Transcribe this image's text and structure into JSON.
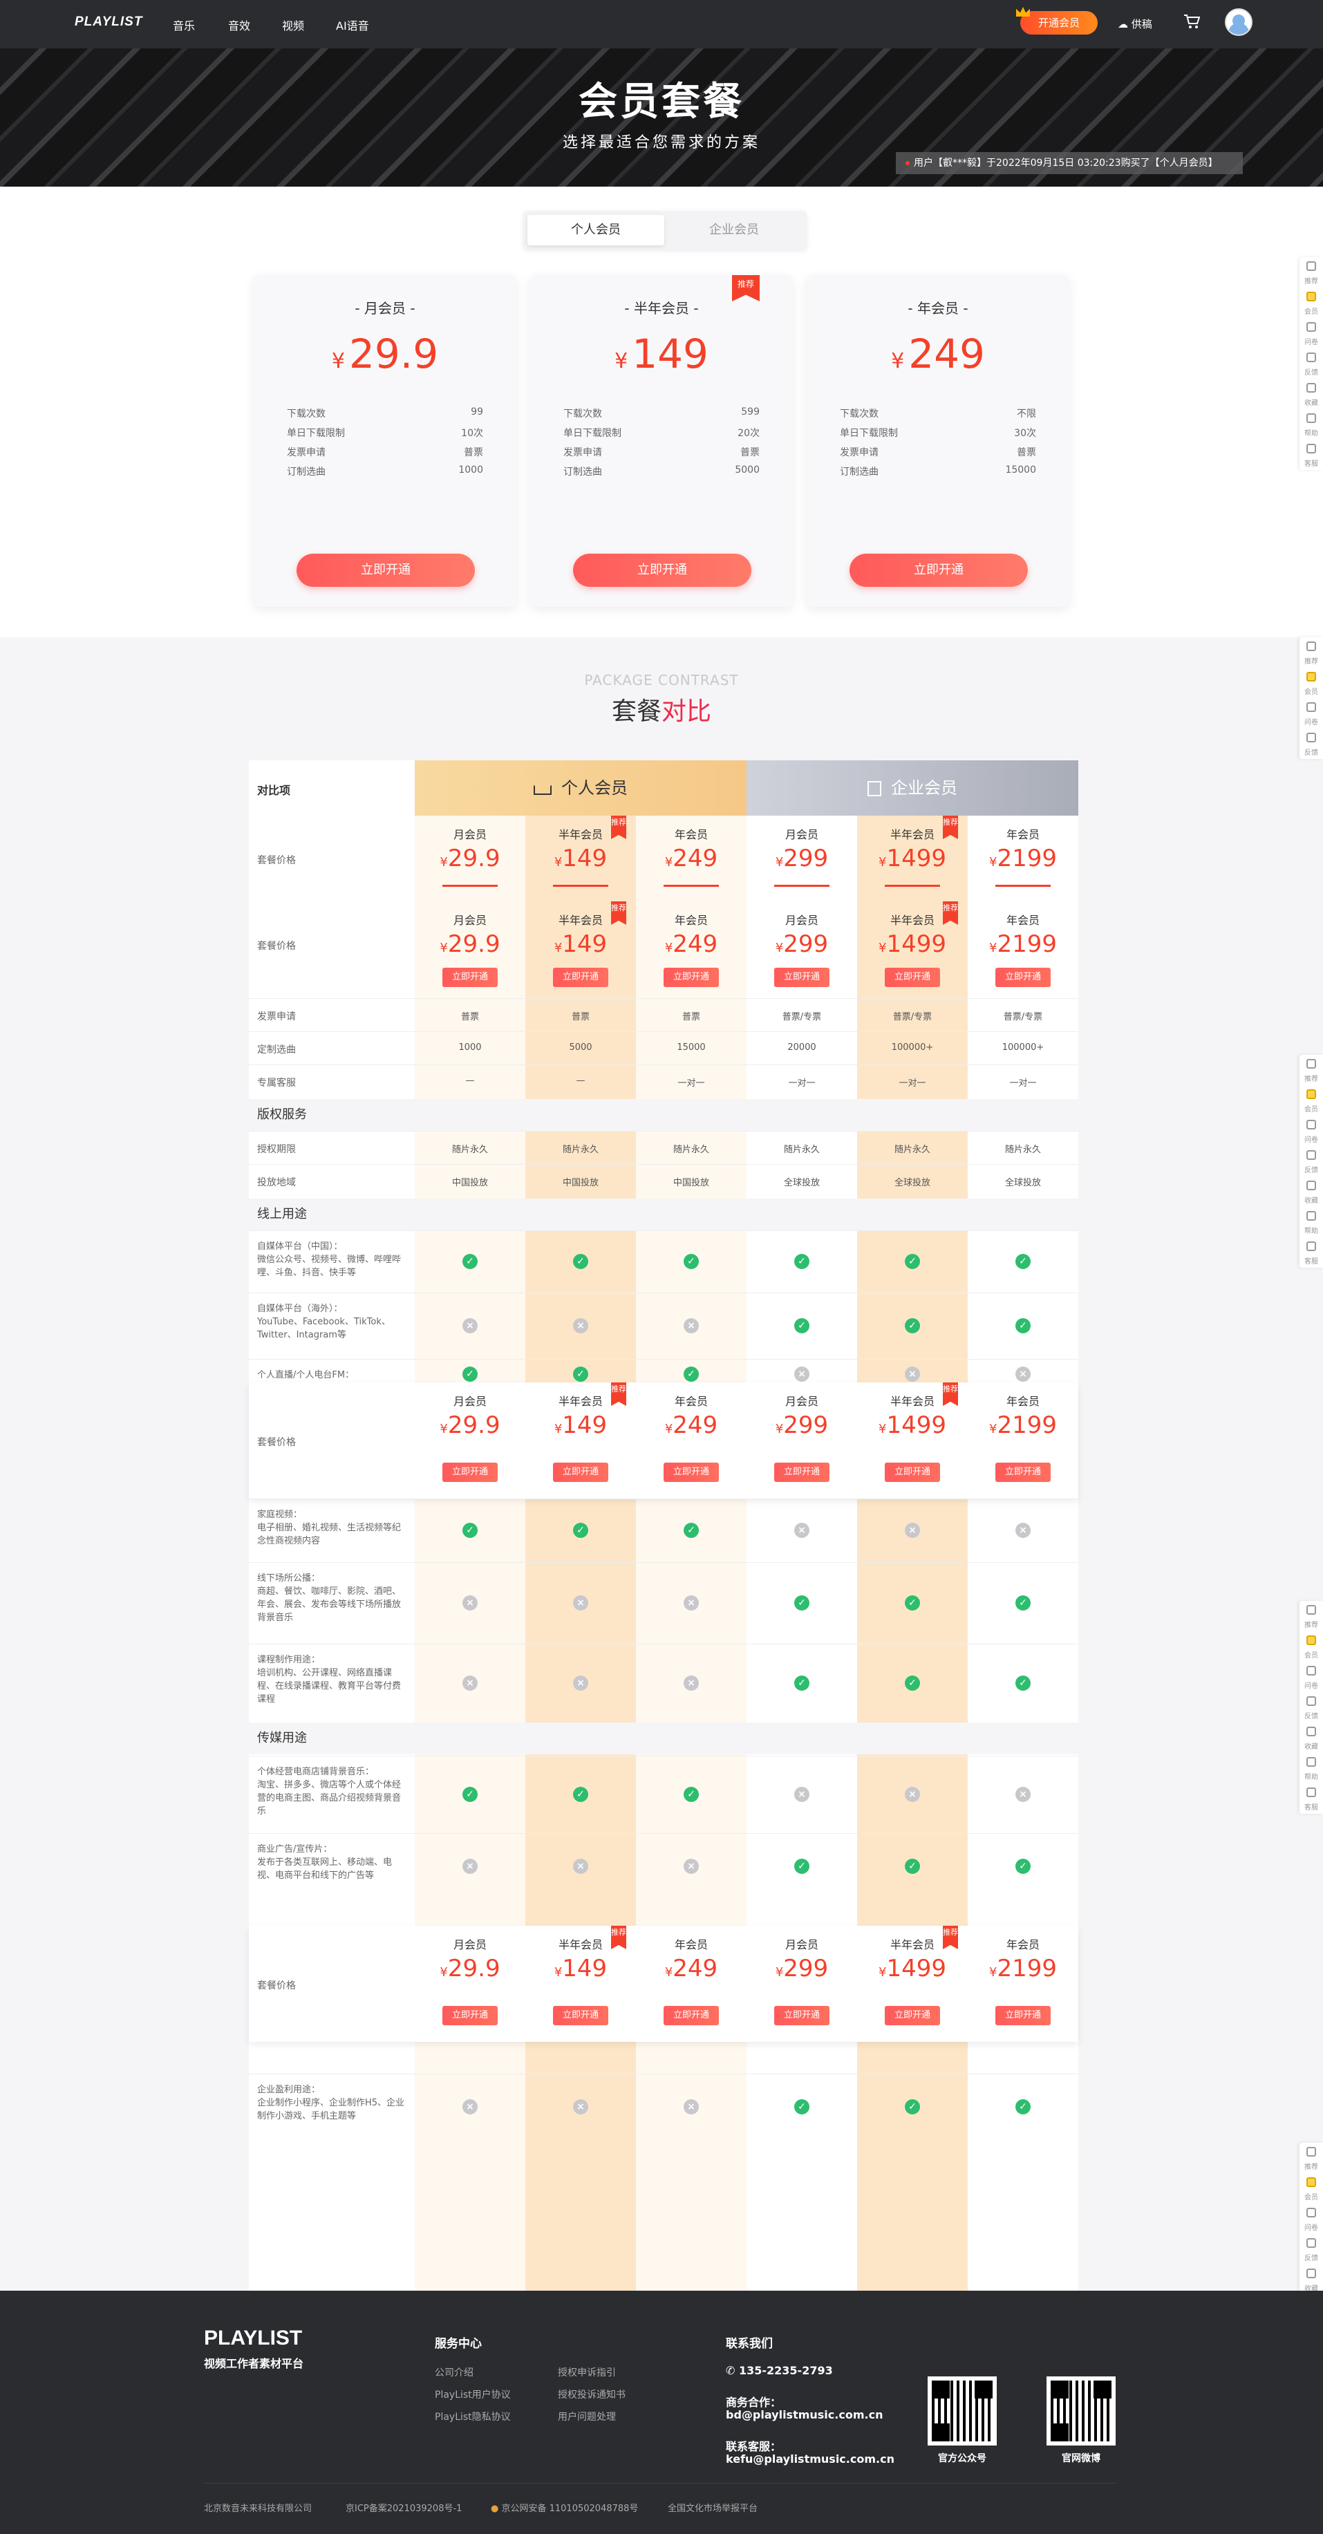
{
  "header": {
    "logo": "PLAYLIST",
    "nav": [
      "音乐",
      "音效",
      "视频",
      "AI语音"
    ],
    "vip_button": "开通会员",
    "upload": "供稿"
  },
  "banner": {
    "title": "会员套餐",
    "subtitle": "选择最适合您需求的方案",
    "notice": "用户【叡***毅】于2022年09月15日 03:20:23购买了【个人月会员】"
  },
  "tabs": [
    "个人会员",
    "企业会员"
  ],
  "plans": [
    {
      "name": "- 月会员 -",
      "price": "29.9",
      "recommend": "",
      "rows": [
        [
          "下载次数",
          "99"
        ],
        [
          "单日下载限制",
          "10次"
        ],
        [
          "发票申请",
          "普票"
        ],
        [
          "订制选曲",
          "1000"
        ]
      ],
      "button": "立即开通"
    },
    {
      "name": "- 半年会员 -",
      "price": "149",
      "recommend": "推荐",
      "rows": [
        [
          "下载次数",
          "599"
        ],
        [
          "单日下载限制",
          "20次"
        ],
        [
          "发票申请",
          "普票"
        ],
        [
          "订制选曲",
          "5000"
        ]
      ],
      "button": "立即开通"
    },
    {
      "name": "- 年会员 -",
      "price": "249",
      "recommend": "",
      "rows": [
        [
          "下载次数",
          "不限"
        ],
        [
          "单日下载限制",
          "30次"
        ],
        [
          "发票申请",
          "普票"
        ],
        [
          "订制选曲",
          "15000"
        ]
      ],
      "button": "立即开通"
    }
  ],
  "compare": {
    "title_en": "PACKAGE CONTRAST",
    "title_a": "套餐",
    "title_b": "对比",
    "label_header": "对比项",
    "personal": "个人会员",
    "enterprise": "企业会员",
    "price_label": "套餐价格",
    "recommend_tag": "推荐",
    "yen": "¥",
    "buy": "立即开通",
    "columns": [
      {
        "name": "月会员",
        "price": "29.9"
      },
      {
        "name": "半年会员",
        "price": "149",
        "recommend": true
      },
      {
        "name": "年会员",
        "price": "249"
      },
      {
        "name": "月会员",
        "price": "299"
      },
      {
        "name": "半年会员",
        "price": "1499",
        "recommend": true
      },
      {
        "name": "年会员",
        "price": "2199"
      }
    ],
    "basic_rows": [
      {
        "label": "发票申请",
        "values": [
          "普票",
          "普票",
          "普票",
          "普票/专票",
          "普票/专票",
          "普票/专票"
        ]
      },
      {
        "label": "定制选曲",
        "values": [
          "1000",
          "5000",
          "15000",
          "20000",
          "100000+",
          "100000+"
        ]
      },
      {
        "label": "专属客服",
        "values": [
          "—",
          "—",
          "一对一",
          "一对一",
          "一对一",
          "一对一"
        ]
      }
    ],
    "copyright_title": "版权服务",
    "copyright_rows": [
      {
        "label": "授权期限",
        "values": [
          "随片永久",
          "随片永久",
          "随片永久",
          "随片永久",
          "随片永久",
          "随片永久"
        ]
      },
      {
        "label": "投放地域",
        "values": [
          "中国投放",
          "中国投放",
          "中国投放",
          "全球投放",
          "全球投放",
          "全球投放"
        ]
      }
    ],
    "online_title": "线上用途",
    "online_rows": [
      {
        "label": "自媒体平台（中国）：\n微信公众号、视频号、微博、哔哩哔哩、斗鱼、抖音、快手等",
        "marks": [
          1,
          1,
          1,
          1,
          1,
          1
        ]
      },
      {
        "label": "自媒体平台（海外）：\nYouTube、Facebook、TikTok、Twitter、Intagram等",
        "marks": [
          0,
          0,
          0,
          1,
          1,
          1
        ]
      },
      {
        "label": "个人直播/个人电台FM：\n个人广播剧、有声书、电台FM、网",
        "marks": [
          1,
          1,
          1,
          0,
          0,
          0
        ]
      }
    ],
    "online_rows2": [
      {
        "label": "家庭视频：\n电子相册、婚礼视频、生活视频等纪念性商视频内容",
        "marks": [
          1,
          1,
          1,
          0,
          0,
          0
        ]
      },
      {
        "label": "线下场所公播：\n商超、餐饮、咖啡厅、影院、酒吧、年会、展会、发布会等线下场所播放背景音乐",
        "marks": [
          0,
          0,
          0,
          1,
          1,
          1
        ]
      },
      {
        "label": "课程制作用途：\n培训机构、公开课程、网络直播课程、在线录播课程、教育平台等付费课程",
        "marks": [
          0,
          0,
          0,
          1,
          1,
          1
        ]
      }
    ],
    "media_title": "传媒用途",
    "media_rows": [
      {
        "label": "个体经营电商店铺背景音乐：\n淘宝、拼多多、微店等个人或个体经营的电商主图、商品介绍视频背景音乐",
        "marks": [
          1,
          1,
          1,
          0,
          0,
          0
        ]
      },
      {
        "label": "商业广告/宣传片：\n发布于各类互联网上、移动端、电视、电商平台和线下的广告等",
        "marks": [
          0,
          0,
          0,
          1,
          1,
          1
        ]
      }
    ],
    "media_rows2": [
      {
        "label": "企业盈利用途：\n企业制作小程序、企业制作H5、企业制作小游戏、手机主题等",
        "marks": [
          0,
          0,
          0,
          1,
          1,
          1
        ]
      }
    ]
  },
  "sidebar": [
    "推荐",
    "会员",
    "问卷",
    "反馈",
    "收藏",
    "帮助",
    "客服"
  ],
  "footer": {
    "logo": "PLAYLIST",
    "slogan": "视频工作者素材平台",
    "service_title": "服务中心",
    "service_links": [
      "公司介绍",
      "授权申诉指引",
      "PlayList用户协议",
      "授权投诉通知书",
      "PlayList隐私协议",
      "用户问题处理"
    ],
    "contact_title": "联系我们",
    "phone": "135-2235-2793",
    "biz_label": "商务合作：",
    "biz_email": "bd@playlistmusic.com.cn",
    "kf_label": "联系客服：",
    "kf_email": "kefu@playlistmusic.com.cn",
    "qr1": "官方公众号",
    "qr2": "官网微博",
    "company": "北京数音未来科技有限公司",
    "icp": "京ICP备案2021039208号-1",
    "police": "京公网安备 11010502048788号",
    "report": "全国文化市场举报平台"
  }
}
